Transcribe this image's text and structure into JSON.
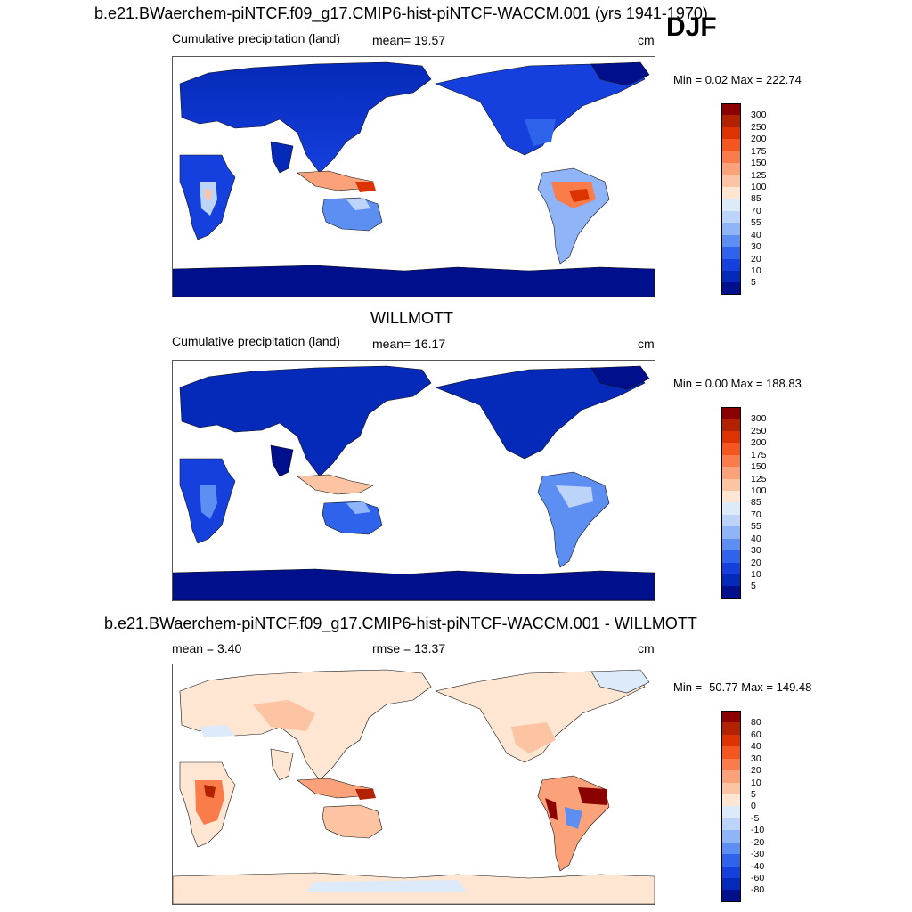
{
  "header": {
    "title_top": "b.e21.BWaerchem-piNTCF.f09_g17.CMIP6-hist-piNTCF-WACCM.001 (yrs 1941-1970)",
    "season": "DJF"
  },
  "panels": [
    {
      "id": "model",
      "left_label": "Cumulative precipitation (land)",
      "center_label": "mean=  19.57",
      "units": "cm",
      "minmax": "Min =   0.02 Max = 222.74",
      "colorbar": {
        "ticks": [
          "300",
          "250",
          "200",
          "175",
          "150",
          "125",
          "100",
          "85",
          "70",
          "55",
          "40",
          "30",
          "20",
          "10",
          "5"
        ],
        "colors": [
          "#8b0000",
          "#b22200",
          "#dd3300",
          "#f5561f",
          "#fb7c4b",
          "#fca27b",
          "#fdc4a4",
          "#fee6d2",
          "#ddeafa",
          "#bdd4fa",
          "#8fb4f8",
          "#5d8ef2",
          "#2f63ec",
          "#1540de",
          "#0529b8",
          "#000f8c"
        ]
      }
    },
    {
      "id": "obs",
      "title": "WILLMOTT",
      "left_label": "Cumulative precipitation (land)",
      "center_label": "mean=  16.17",
      "units": "cm",
      "minmax": "Min =   0.00 Max = 188.83",
      "colorbar": {
        "ticks": [
          "300",
          "250",
          "200",
          "175",
          "150",
          "125",
          "100",
          "85",
          "70",
          "55",
          "40",
          "30",
          "20",
          "10",
          "5"
        ],
        "colors": [
          "#8b0000",
          "#b22200",
          "#dd3300",
          "#f5561f",
          "#fb7c4b",
          "#fca27b",
          "#fdc4a4",
          "#fee6d2",
          "#ddeafa",
          "#bdd4fa",
          "#8fb4f8",
          "#5d8ef2",
          "#2f63ec",
          "#1540de",
          "#0529b8",
          "#000f8c"
        ]
      }
    },
    {
      "id": "diff",
      "title": "b.e21.BWaerchem-piNTCF.f09_g17.CMIP6-hist-piNTCF-WACCM.001 - WILLMOTT",
      "left_label": "mean =   3.40",
      "center_label": "rmse =  13.37",
      "units": "cm",
      "minmax": "Min = -50.77 Max = 149.48",
      "colorbar": {
        "ticks": [
          "80",
          "60",
          "40",
          "30",
          "20",
          "10",
          "5",
          "0",
          "-5",
          "-10",
          "-20",
          "-30",
          "-40",
          "-60",
          "-80"
        ],
        "colors": [
          "#8b0000",
          "#b22200",
          "#dd3300",
          "#f5561f",
          "#fb7c4b",
          "#fca27b",
          "#fdc4a4",
          "#fee6d2",
          "#ddeafa",
          "#bdd4fa",
          "#8fb4f8",
          "#5d8ef2",
          "#2f63ec",
          "#1540de",
          "#0529b8",
          "#000f8c"
        ]
      }
    }
  ]
}
